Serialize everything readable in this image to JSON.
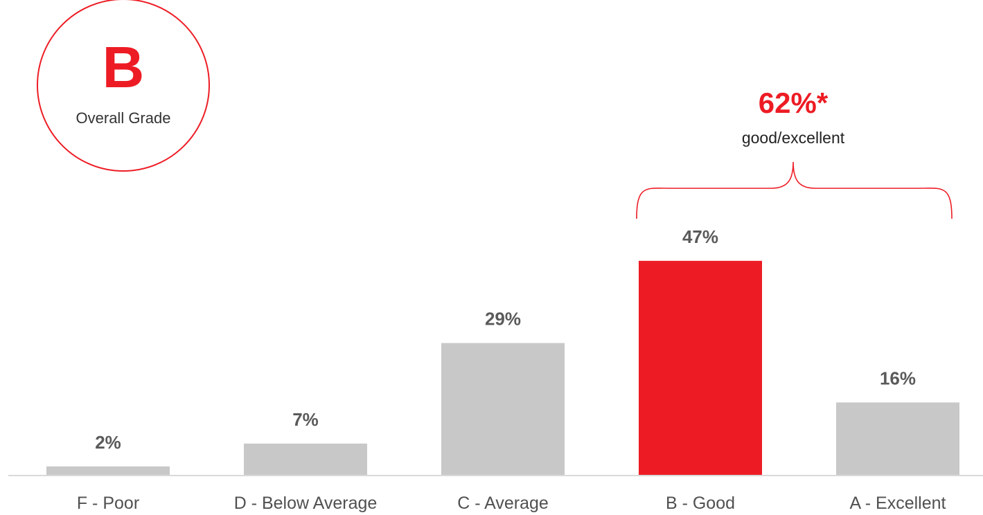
{
  "badge": {
    "grade": "B",
    "caption": "Overall Grade"
  },
  "summary": {
    "value": "62%*",
    "caption": "good/excellent"
  },
  "colors": {
    "accent": "#ED1C24",
    "bar": "#C8C8C8",
    "axis": "#D9D9D9",
    "value_label": "#5A5A5A",
    "tick_label": "#505050"
  },
  "chart_data": {
    "type": "bar",
    "categories": [
      "F - Poor",
      "D - Below Average",
      "C - Average",
      "B - Good",
      "A - Excellent"
    ],
    "values": [
      2,
      7,
      29,
      47,
      16
    ],
    "value_labels": [
      "2%",
      "7%",
      "29%",
      "47%",
      "16%"
    ],
    "highlight_index": 3,
    "bracket_categories": [
      "B - Good",
      "A - Excellent"
    ],
    "title": "",
    "xlabel": "",
    "ylabel": "",
    "grid": false,
    "legend": "none"
  }
}
